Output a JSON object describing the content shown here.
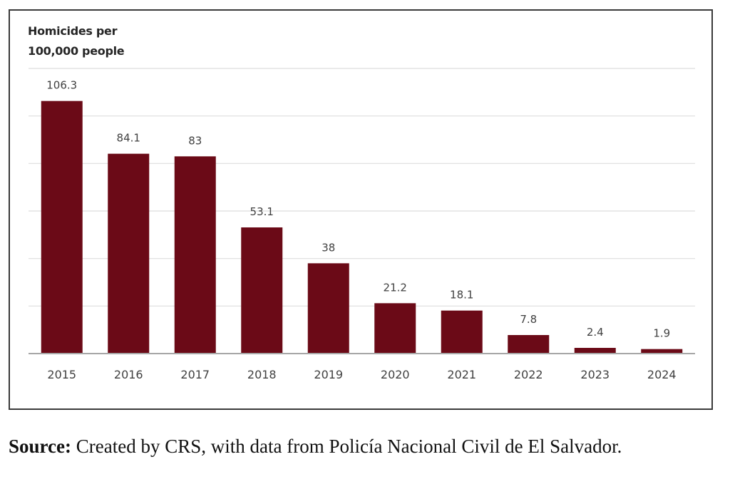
{
  "chart_data": {
    "type": "bar",
    "title": "",
    "ylabel": "Homicides per\n100,000 people",
    "xlabel": "",
    "categories": [
      "2015",
      "2016",
      "2017",
      "2018",
      "2019",
      "2020",
      "2021",
      "2022",
      "2023",
      "2024"
    ],
    "values": [
      106.3,
      84.1,
      83,
      53.1,
      38,
      21.2,
      18.1,
      7.8,
      2.4,
      1.9
    ],
    "value_labels": [
      "106.3",
      "84.1",
      "83",
      "53.1",
      "38",
      "21.2",
      "18.1",
      "7.8",
      "2.4",
      "1.9"
    ],
    "ylim": [
      0,
      120
    ],
    "y_gridlines": [
      20,
      40,
      60,
      80,
      100,
      120
    ],
    "grid": true,
    "y_tick_labels_visible": false,
    "legend": "none",
    "bar_color": "#6b0a17"
  },
  "source": {
    "label": "Source:",
    "text": " Created by CRS, with data from Policía Nacional Civil de El Salvador."
  }
}
